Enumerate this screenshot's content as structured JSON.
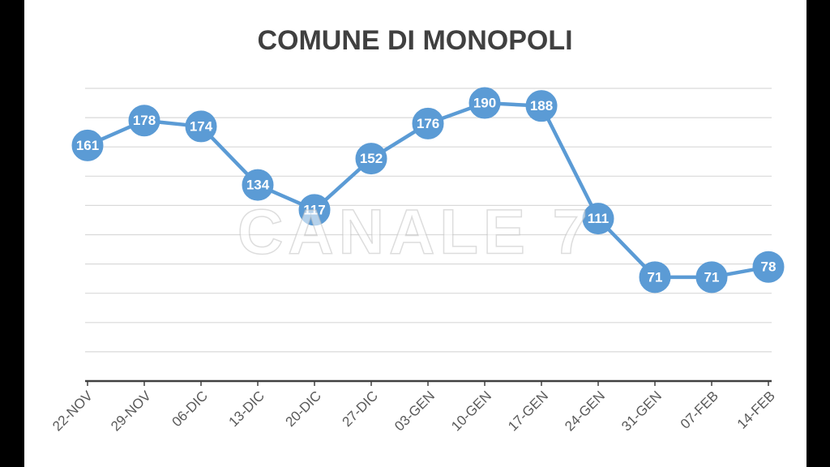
{
  "chart_data": {
    "type": "line",
    "title": "COMUNE DI MONOPOLI",
    "watermark": "CANALE 7",
    "categories": [
      "22-NOV",
      "29-NOV",
      "06-DIC",
      "13-DIC",
      "20-DIC",
      "27-DIC",
      "03-GEN",
      "10-GEN",
      "17-GEN",
      "24-GEN",
      "31-GEN",
      "07-FEB",
      "14-FEB"
    ],
    "values": [
      161,
      178,
      174,
      134,
      117,
      152,
      176,
      190,
      188,
      111,
      71,
      71,
      78
    ],
    "color": "#5b9bd5",
    "ylim": [
      0,
      200
    ],
    "yticks": [
      0,
      20,
      40,
      60,
      80,
      100,
      120,
      140,
      160,
      180,
      200
    ],
    "grid": true
  }
}
